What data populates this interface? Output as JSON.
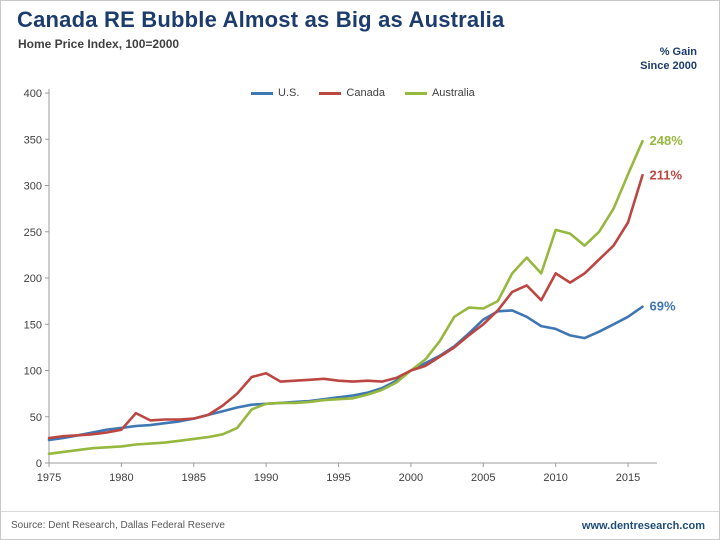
{
  "title": "Canada RE Bubble Almost as Big as Australia",
  "subtitle": "Home Price Index, 100=2000",
  "gain_label_line1": "% Gain",
  "gain_label_line2": "Since 2000",
  "footer": {
    "source": "Source: Dent Research, Dallas Federal Reserve",
    "website": "www.dentresearch.com"
  },
  "chart_data": {
    "type": "line",
    "title": "Canada RE Bubble Almost as Big as Australia",
    "subtitle": "Home Price Index, 100=2000",
    "xlabel": "",
    "ylabel": "",
    "ylim": [
      0,
      400
    ],
    "ytick_step": 50,
    "xticks": [
      1975,
      1980,
      1985,
      1990,
      1995,
      2000,
      2005,
      2010,
      2015
    ],
    "grid": false,
    "legend_position": "top",
    "x": [
      1975,
      1976,
      1977,
      1978,
      1979,
      1980,
      1981,
      1982,
      1983,
      1984,
      1985,
      1986,
      1987,
      1988,
      1989,
      1990,
      1991,
      1992,
      1993,
      1994,
      1995,
      1996,
      1997,
      1998,
      1999,
      2000,
      2001,
      2002,
      2003,
      2004,
      2005,
      2006,
      2007,
      2008,
      2009,
      2010,
      2011,
      2012,
      2013,
      2014,
      2015,
      2016
    ],
    "series": [
      {
        "name": "U.S.",
        "color": "#3f76b4",
        "end_label": "69%",
        "values": [
          25,
          27,
          30,
          33,
          36,
          38,
          40,
          41,
          43,
          45,
          48,
          52,
          56,
          60,
          63,
          64,
          65,
          66,
          67,
          69,
          71,
          73,
          76,
          81,
          89,
          100,
          108,
          116,
          126,
          140,
          155,
          164,
          165,
          158,
          148,
          145,
          138,
          135,
          142,
          150,
          158,
          169
        ]
      },
      {
        "name": "Canada",
        "color": "#bc4742",
        "end_label": "211%",
        "values": [
          27,
          29,
          30,
          31,
          33,
          36,
          54,
          46,
          47,
          47,
          48,
          52,
          62,
          75,
          93,
          97,
          88,
          89,
          90,
          91,
          89,
          88,
          89,
          88,
          92,
          100,
          105,
          115,
          125,
          138,
          150,
          165,
          185,
          192,
          176,
          205,
          195,
          205,
          220,
          235,
          260,
          311
        ]
      },
      {
        "name": "Australia",
        "color": "#96b83f",
        "end_label": "248%",
        "values": [
          10,
          12,
          14,
          16,
          17,
          18,
          20,
          21,
          22,
          24,
          26,
          28,
          31,
          38,
          58,
          64,
          65,
          65,
          66,
          68,
          69,
          70,
          74,
          79,
          87,
          100,
          112,
          132,
          158,
          168,
          167,
          175,
          205,
          222,
          205,
          252,
          248,
          235,
          250,
          275,
          312,
          348
        ]
      }
    ]
  }
}
